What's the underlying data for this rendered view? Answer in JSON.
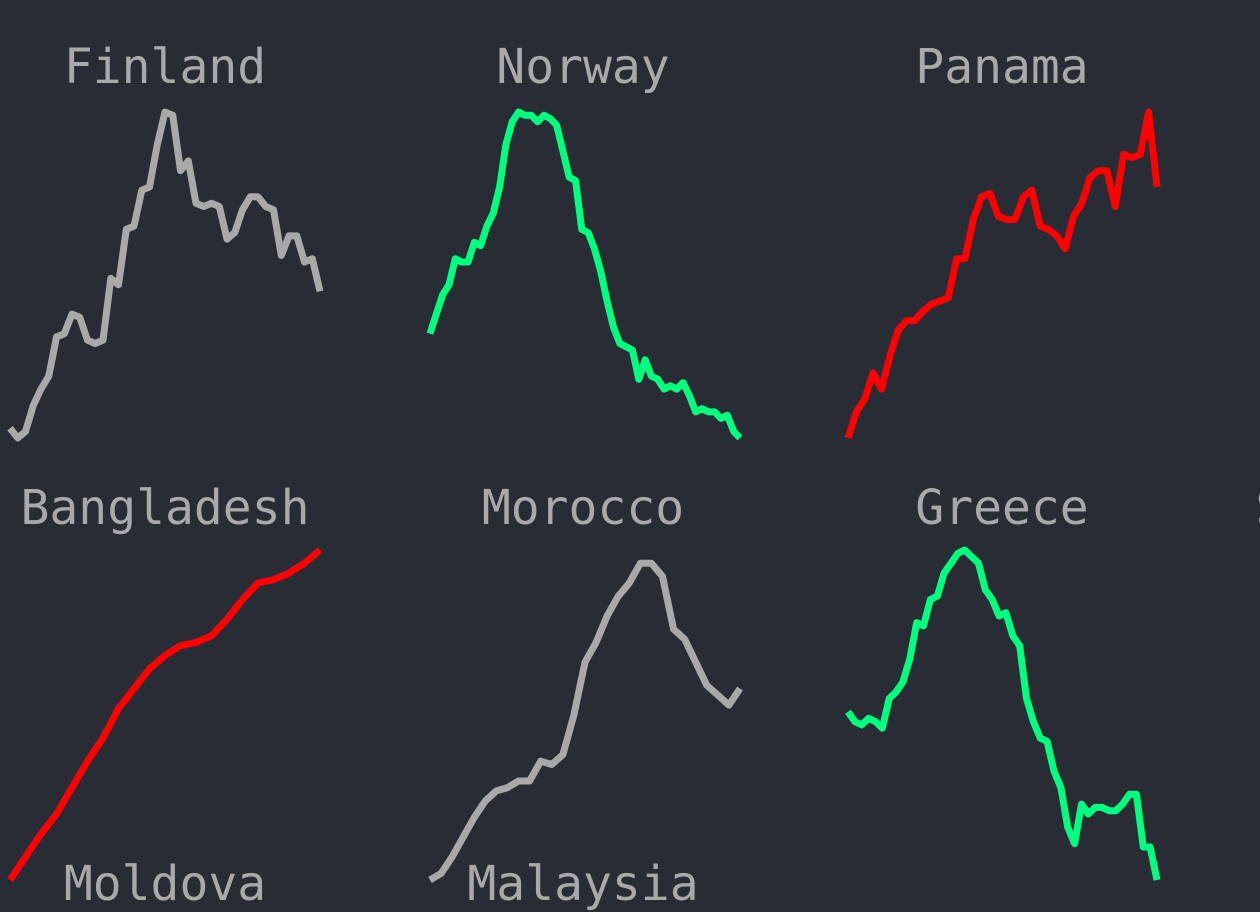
{
  "colors": {
    "background": "#282c34",
    "label": "#a9a9a9",
    "up": "#ff0000",
    "peak": "#00ff7f",
    "neutral": "#a9a9a9"
  },
  "chart_data": {
    "type": "line",
    "grid": false,
    "legend": "none",
    "axes": "hidden",
    "panels": [
      {
        "title": "Finland",
        "color": "#a9a9a9",
        "values": [
          0.03,
          0.0,
          0.02,
          0.1,
          0.15,
          0.19,
          0.31,
          0.32,
          0.38,
          0.37,
          0.3,
          0.29,
          0.3,
          0.49,
          0.47,
          0.64,
          0.65,
          0.76,
          0.77,
          0.9,
          1.0,
          0.99,
          0.82,
          0.85,
          0.72,
          0.71,
          0.72,
          0.71,
          0.61,
          0.63,
          0.7,
          0.74,
          0.74,
          0.71,
          0.7,
          0.56,
          0.62,
          0.62,
          0.54,
          0.55,
          0.45
        ]
      },
      {
        "title": "Norway",
        "color": "#00ff7f",
        "values": [
          0.32,
          0.38,
          0.44,
          0.47,
          0.55,
          0.54,
          0.54,
          0.6,
          0.59,
          0.65,
          0.69,
          0.77,
          0.9,
          0.97,
          1.0,
          0.99,
          0.99,
          0.97,
          0.99,
          0.98,
          0.96,
          0.88,
          0.8,
          0.79,
          0.64,
          0.63,
          0.58,
          0.51,
          0.42,
          0.34,
          0.29,
          0.28,
          0.27,
          0.18,
          0.24,
          0.19,
          0.18,
          0.15,
          0.16,
          0.15,
          0.17,
          0.13,
          0.08,
          0.09,
          0.08,
          0.08,
          0.06,
          0.07,
          0.02,
          0.0
        ]
      },
      {
        "title": "Panama",
        "color": "#ff0000",
        "values": [
          0.0,
          0.08,
          0.12,
          0.2,
          0.15,
          0.25,
          0.33,
          0.36,
          0.36,
          0.39,
          0.41,
          0.42,
          0.43,
          0.55,
          0.55,
          0.67,
          0.74,
          0.75,
          0.68,
          0.67,
          0.67,
          0.74,
          0.76,
          0.65,
          0.64,
          0.62,
          0.58,
          0.68,
          0.72,
          0.8,
          0.82,
          0.82,
          0.71,
          0.87,
          0.86,
          0.87,
          1.0,
          0.77
        ]
      },
      {
        "title": "Bangladesh",
        "color": "#ff0000",
        "values": [
          0.0,
          0.07,
          0.14,
          0.2,
          0.28,
          0.36,
          0.43,
          0.52,
          0.58,
          0.64,
          0.68,
          0.71,
          0.72,
          0.74,
          0.79,
          0.85,
          0.9,
          0.91,
          0.93,
          0.96,
          1.0
        ]
      },
      {
        "title": "Morocco",
        "color": "#a9a9a9",
        "values": [
          0.0,
          0.02,
          0.07,
          0.13,
          0.19,
          0.24,
          0.27,
          0.28,
          0.3,
          0.3,
          0.36,
          0.35,
          0.38,
          0.5,
          0.66,
          0.72,
          0.8,
          0.86,
          0.9,
          0.96,
          0.96,
          0.92,
          0.76,
          0.73,
          0.66,
          0.59,
          0.56,
          0.53,
          0.58
        ]
      },
      {
        "title": "Greece",
        "color": "#00ff7f",
        "values": [
          0.51,
          0.48,
          0.47,
          0.49,
          0.48,
          0.46,
          0.55,
          0.57,
          0.6,
          0.67,
          0.78,
          0.77,
          0.85,
          0.86,
          0.93,
          0.96,
          0.99,
          1.0,
          0.98,
          0.96,
          0.88,
          0.85,
          0.8,
          0.81,
          0.74,
          0.71,
          0.55,
          0.48,
          0.43,
          0.42,
          0.33,
          0.28,
          0.16,
          0.11,
          0.23,
          0.2,
          0.22,
          0.22,
          0.21,
          0.21,
          0.23,
          0.26,
          0.26,
          0.1,
          0.1,
          0.0
        ]
      },
      {
        "title": "S",
        "color": "#a9a9a9",
        "values": []
      },
      {
        "title": "Moldova",
        "color": "#a9a9a9",
        "values": []
      },
      {
        "title": "Malaysia",
        "color": "#a9a9a9",
        "values": []
      }
    ]
  }
}
